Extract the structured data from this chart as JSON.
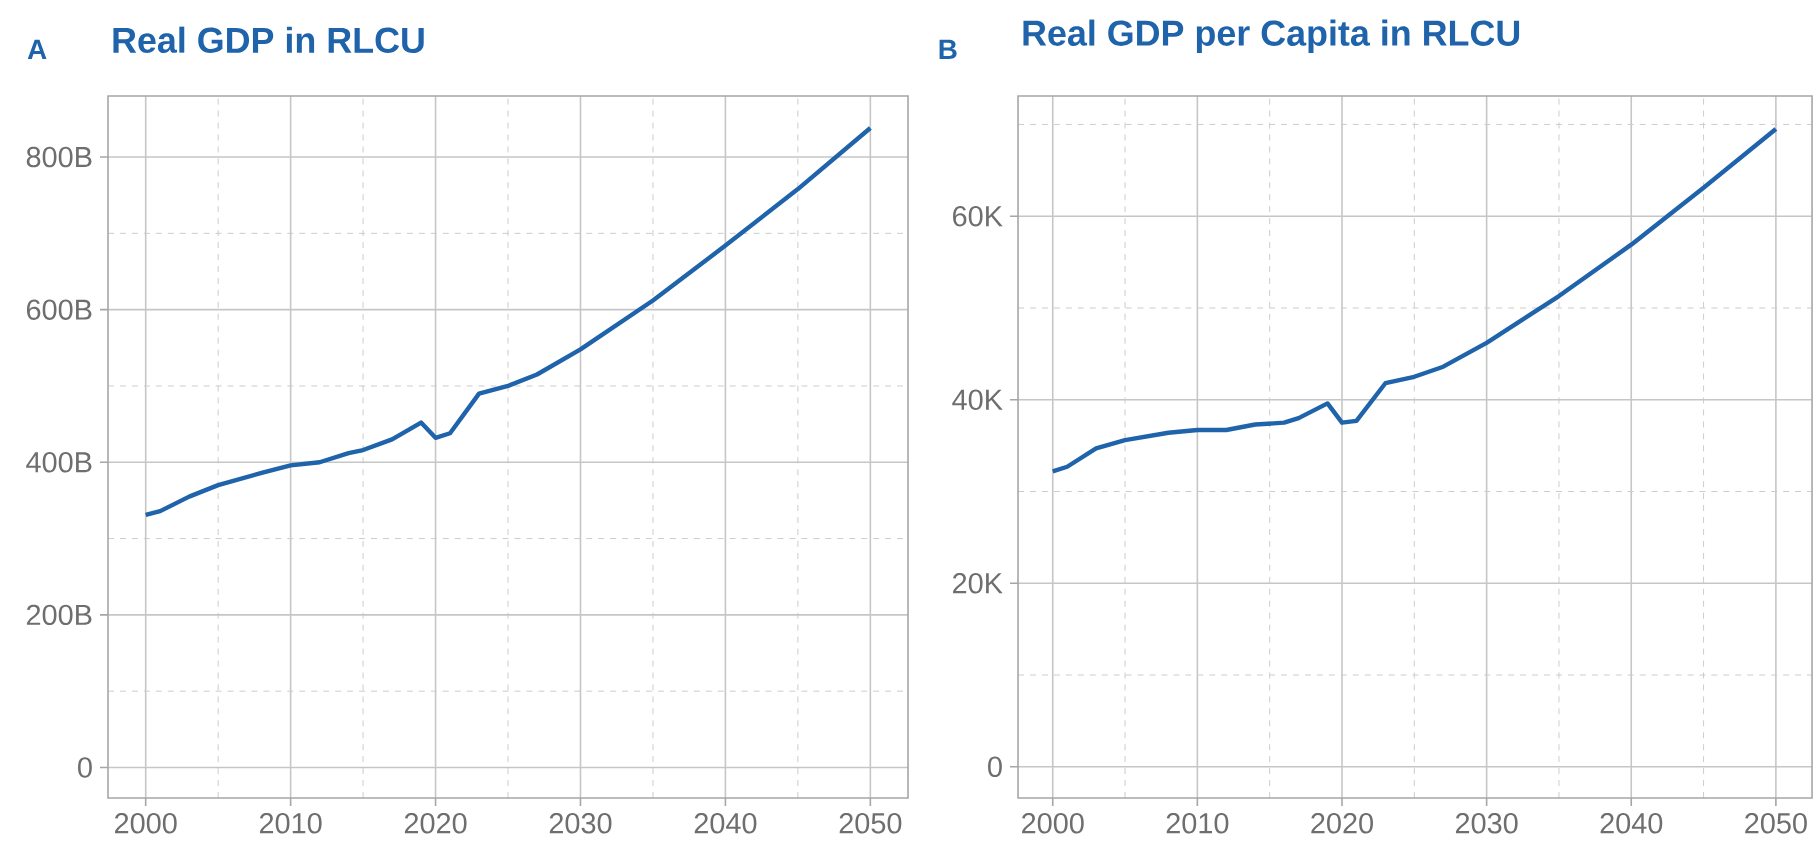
{
  "chart_data": [
    {
      "type": "line",
      "title": "Real GDP in RLCU",
      "annotations": [
        "A"
      ],
      "grid": true,
      "line_style": "solid",
      "x": [
        2000,
        2001,
        2003,
        2005,
        2008,
        2010,
        2012,
        2014,
        2015,
        2017,
        2019,
        2020,
        2021,
        2023,
        2025,
        2027,
        2030,
        2035,
        2040,
        2045,
        2050
      ],
      "series": [
        {
          "color": "#1f63ab",
          "values": [
            331,
            336,
            355,
            370,
            386,
            396,
            400,
            412,
            416,
            430,
            452,
            432,
            438,
            490,
            500,
            515,
            548,
            612,
            684,
            758,
            838
          ]
        }
      ],
      "xlim": [
        1997.4,
        2052.6
      ],
      "ylim": [
        -40,
        880
      ],
      "xticks": [
        2000,
        {
          "value": 2005,
          "label": null
        },
        2010,
        {
          "value": 2015,
          "label": null
        },
        2020,
        {
          "value": 2025,
          "label": null
        },
        2030,
        {
          "value": 2035,
          "label": null
        },
        2040,
        {
          "value": 2045,
          "label": null
        },
        2050
      ],
      "yticks": [
        0,
        {
          "value": 100,
          "label": null
        },
        {
          "value": 200,
          "label": "200B"
        },
        {
          "value": 300,
          "label": null
        },
        {
          "value": 400,
          "label": "400B"
        },
        {
          "value": 500,
          "label": null
        },
        {
          "value": 600,
          "label": "600B"
        },
        {
          "value": 700,
          "label": null
        },
        {
          "value": 800,
          "label": "800B"
        }
      ]
    },
    {
      "type": "line",
      "title": "Real GDP per Capita in RLCU",
      "annotations": [
        "B"
      ],
      "grid": true,
      "line_style": "solid",
      "x": [
        2000,
        2001,
        2003,
        2005,
        2008,
        2010,
        2012,
        2014,
        2016,
        2017,
        2019,
        2020,
        2021,
        2023,
        2025,
        2027,
        2030,
        2035,
        2040,
        2045,
        2050
      ],
      "series": [
        {
          "color": "#1f63ab",
          "values": [
            32200,
            32700,
            34700,
            35600,
            36400,
            36700,
            36700,
            37300,
            37500,
            38000,
            39600,
            37500,
            37700,
            41800,
            42500,
            43600,
            46200,
            51300,
            56900,
            63100,
            69500
          ]
        }
      ],
      "xlim": [
        1997.6,
        2052.5
      ],
      "ylim": [
        -3400,
        73100
      ],
      "xticks": [
        2000,
        {
          "value": 2005,
          "label": null
        },
        2010,
        {
          "value": 2015,
          "label": null
        },
        2020,
        {
          "value": 2025,
          "label": null
        },
        2030,
        {
          "value": 2035,
          "label": null
        },
        2040,
        {
          "value": 2045,
          "label": null
        },
        2050
      ],
      "yticks": [
        0,
        {
          "value": 10000,
          "label": null
        },
        {
          "value": 20000,
          "label": "20K"
        },
        {
          "value": 30000,
          "label": null
        },
        {
          "value": 40000,
          "label": "40K"
        },
        {
          "value": 50000,
          "label": null
        },
        {
          "value": 60000,
          "label": "60K"
        },
        {
          "value": 70000,
          "label": null
        }
      ]
    }
  ]
}
